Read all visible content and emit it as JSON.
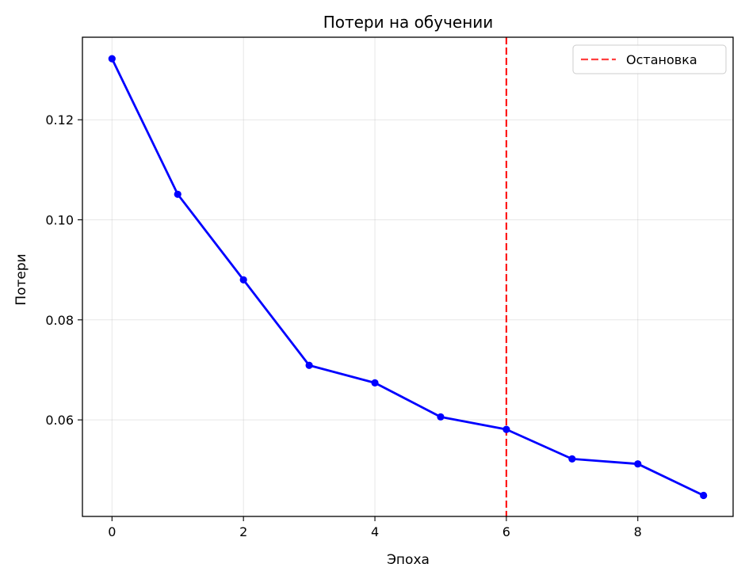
{
  "chart_data": {
    "type": "line",
    "title": "Потери на обучении",
    "xlabel": "Эпоха",
    "ylabel": "Потери",
    "xlim": [
      -0.45,
      9.45
    ],
    "ylim": [
      0.0407,
      0.1365
    ],
    "x_ticks": [
      0,
      2,
      4,
      6,
      8
    ],
    "y_ticks": [
      0.06,
      0.08,
      0.1,
      0.12
    ],
    "y_tick_labels": [
      "0.06",
      "0.08",
      "0.10",
      "0.12"
    ],
    "grid": true,
    "legend_position": "top-right",
    "series": [
      {
        "color": "#0000ff",
        "x": [
          0,
          1,
          2,
          3,
          4,
          5,
          6,
          7,
          8,
          9
        ],
        "y": [
          0.1322,
          0.1051,
          0.088,
          0.0709,
          0.0674,
          0.0606,
          0.0581,
          0.0522,
          0.0512,
          0.0449
        ]
      }
    ],
    "annotations": [
      {
        "type": "vline",
        "x": 6,
        "label": "Остановка",
        "color": "#ff0000",
        "style": "dashed"
      }
    ]
  }
}
